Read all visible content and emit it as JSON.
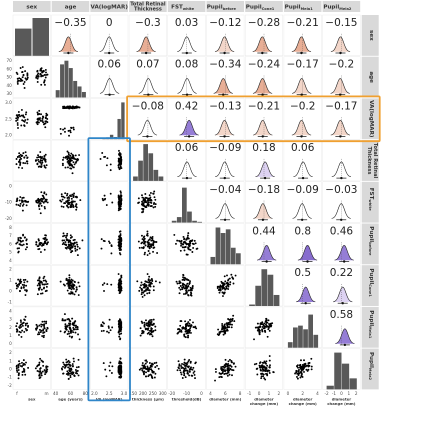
{
  "chart_data": {
    "type": "pairs-matrix",
    "title": "",
    "variables": [
      {
        "key": "sex",
        "label": "sex",
        "row_label": "sex"
      },
      {
        "key": "age",
        "label": "age",
        "row_label": "age"
      },
      {
        "key": "va",
        "label": "VA(logMAR)",
        "row_label": "VA(logMAR)"
      },
      {
        "key": "trt",
        "label": "Total Retinal Thickness",
        "row_label": "Total Retinal Thickness"
      },
      {
        "key": "fst",
        "label": "FST",
        "sub": "white",
        "row_label": "FST",
        "row_sub": "white"
      },
      {
        "key": "pb",
        "label": "Pupil",
        "sub": "before",
        "row_label": "Pupil",
        "row_sub": "before"
      },
      {
        "key": "pc",
        "label": "Pupil",
        "sub": "Cone1",
        "row_label": "Pupil",
        "row_sub": "Cone1"
      },
      {
        "key": "pm1",
        "label": "Pupil",
        "sub": "Mela1",
        "row_label": "Pupil",
        "row_sub": "Mela1"
      },
      {
        "key": "pm2",
        "label": "Pupil",
        "sub": "Mela2",
        "row_label": "Pupil",
        "row_sub": "Mela2"
      }
    ],
    "x_axis_labels": [
      "sex",
      "age (years)",
      "VA (logMAR)",
      "thickness (µm)",
      "threshold(dB)",
      "diameter (mm)",
      "diameter\nchange (mm)",
      "diameter\nchange (mm)",
      "diameter\nchange (mm)"
    ],
    "x_ticks": [
      [
        "f",
        "m"
      ],
      [
        "40",
        "60",
        "80"
      ],
      [
        "2.0",
        "2.5",
        "3.0"
      ],
      [
        "150",
        "200",
        "250",
        "300"
      ],
      [
        "-20",
        "-10",
        "0"
      ],
      [
        "4",
        "6",
        "8"
      ],
      [
        "-1",
        "0",
        "1",
        "2"
      ],
      [
        "0",
        "2",
        "4"
      ],
      [
        "-2",
        "-1",
        "0",
        "1",
        "2"
      ]
    ],
    "y_ticks": {
      "age": [
        "70",
        "60",
        "50",
        "40",
        "30"
      ],
      "va": [
        "3.0",
        "2.5",
        "2.0"
      ],
      "fst": [
        "0",
        "-10",
        "-20"
      ],
      "pb": [
        "8",
        "7",
        "6",
        "5",
        "4"
      ],
      "pc": [
        "2",
        "1",
        "0",
        "-1"
      ],
      "pm1": [
        "4",
        "3",
        "2",
        "1",
        "0"
      ],
      "pm2": [
        "2",
        "1",
        "0",
        "-1",
        "-2"
      ]
    },
    "correlations": [
      {
        "row": 0,
        "col": 1,
        "r": "−0.35",
        "shade": "#e6a58a"
      },
      {
        "row": 0,
        "col": 2,
        "r": "0",
        "shade": "#ffffff"
      },
      {
        "row": 0,
        "col": 3,
        "r": "−0.3",
        "shade": "#e6a58a"
      },
      {
        "row": 0,
        "col": 4,
        "r": "0.03",
        "shade": "#ffffff"
      },
      {
        "row": 0,
        "col": 5,
        "r": "−0.12",
        "shade": "#f2d1c3"
      },
      {
        "row": 0,
        "col": 6,
        "r": "−0.28",
        "shade": "#e6a58a"
      },
      {
        "row": 0,
        "col": 7,
        "r": "−0.21",
        "shade": "#e6a58a"
      },
      {
        "row": 0,
        "col": 8,
        "r": "−0.15",
        "shade": "#f2d1c3"
      },
      {
        "row": 1,
        "col": 2,
        "r": "0.06",
        "shade": "#ffffff"
      },
      {
        "row": 1,
        "col": 3,
        "r": "0.07",
        "shade": "#ffffff"
      },
      {
        "row": 1,
        "col": 4,
        "r": "0.08",
        "shade": "#ffffff"
      },
      {
        "row": 1,
        "col": 5,
        "r": "−0.34",
        "shade": "#e6a58a"
      },
      {
        "row": 1,
        "col": 6,
        "r": "−0.24",
        "shade": "#e6a58a"
      },
      {
        "row": 1,
        "col": 7,
        "r": "−0.17",
        "shade": "#f2d1c3"
      },
      {
        "row": 1,
        "col": 8,
        "r": "−0.2",
        "shade": "#f2d1c3"
      },
      {
        "row": 2,
        "col": 3,
        "r": "−0.08",
        "shade": "#ffffff"
      },
      {
        "row": 2,
        "col": 4,
        "r": "0.42",
        "shade": "#8a6fd1"
      },
      {
        "row": 2,
        "col": 5,
        "r": "−0.13",
        "shade": "#f2d1c3"
      },
      {
        "row": 2,
        "col": 6,
        "r": "−0.21",
        "shade": "#f2d1c3"
      },
      {
        "row": 2,
        "col": 7,
        "r": "−0.2",
        "shade": "#f2d1c3"
      },
      {
        "row": 2,
        "col": 8,
        "r": "−0.17",
        "shade": "#f2d1c3"
      },
      {
        "row": 3,
        "col": 4,
        "r": "0.06",
        "shade": "#ffffff"
      },
      {
        "row": 3,
        "col": 5,
        "r": "−0.09",
        "shade": "#ffffff"
      },
      {
        "row": 3,
        "col": 6,
        "r": "0.18",
        "shade": "#d9cdf1"
      },
      {
        "row": 3,
        "col": 7,
        "r": "0.06",
        "shade": "#ffffff"
      },
      {
        "row": 4,
        "col": 5,
        "r": "−0.04",
        "shade": "#ffffff"
      },
      {
        "row": 4,
        "col": 6,
        "r": "−0.18",
        "shade": "#f2d1c3"
      },
      {
        "row": 4,
        "col": 7,
        "r": "−0.09",
        "shade": "#ffffff"
      },
      {
        "row": 4,
        "col": 8,
        "r": "−0.03",
        "shade": "#ffffff"
      },
      {
        "row": 5,
        "col": 6,
        "r": "0.44",
        "shade": "#8a6fd1"
      },
      {
        "row": 5,
        "col": 7,
        "r": "0.8",
        "shade": "#7a5cc9"
      },
      {
        "row": 5,
        "col": 8,
        "r": "0.46",
        "shade": "#8a6fd1"
      },
      {
        "row": 6,
        "col": 7,
        "r": "0.5",
        "shade": "#8a6fd1"
      },
      {
        "row": 6,
        "col": 8,
        "r": "0.22",
        "shade": "#d9cdf1"
      },
      {
        "row": 7,
        "col": 8,
        "r": "0.58",
        "shade": "#8a6fd1"
      }
    ],
    "sex_counts": {
      "categories": [
        "f",
        "m"
      ],
      "values": [
        0.72,
        1.0
      ]
    },
    "highlight": {
      "row": "VA(logMAR)",
      "row_color": "#f0a030",
      "column": "VA(logMAR)",
      "column_color": "#2f86c9"
    }
  }
}
